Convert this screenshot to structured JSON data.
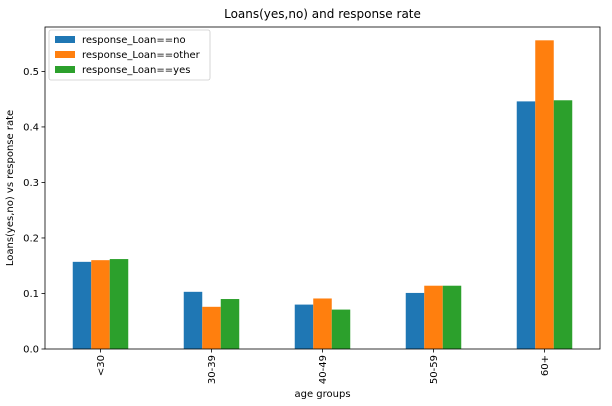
{
  "chart_data": {
    "type": "bar",
    "title": "Loans(yes,no) and response rate",
    "xlabel": "age groups",
    "ylabel": "Loans(yes,no) vs response rate",
    "categories": [
      "<30",
      "30-39",
      "40-49",
      "50-59",
      "60+"
    ],
    "series": [
      {
        "name": "response_Loan==no",
        "color": "#1f77b4",
        "values": [
          0.157,
          0.103,
          0.08,
          0.101,
          0.446
        ]
      },
      {
        "name": "response_Loan==other",
        "color": "#ff7f0e",
        "values": [
          0.16,
          0.076,
          0.091,
          0.114,
          0.556
        ]
      },
      {
        "name": "response_Loan==yes",
        "color": "#2ca02c",
        "values": [
          0.162,
          0.09,
          0.071,
          0.114,
          0.448
        ]
      }
    ],
    "ylim": [
      0,
      0.58
    ],
    "yticks": [
      "0.0",
      "0.1",
      "0.2",
      "0.3",
      "0.4",
      "0.5"
    ],
    "grid": false,
    "legend_position": "top-left"
  }
}
